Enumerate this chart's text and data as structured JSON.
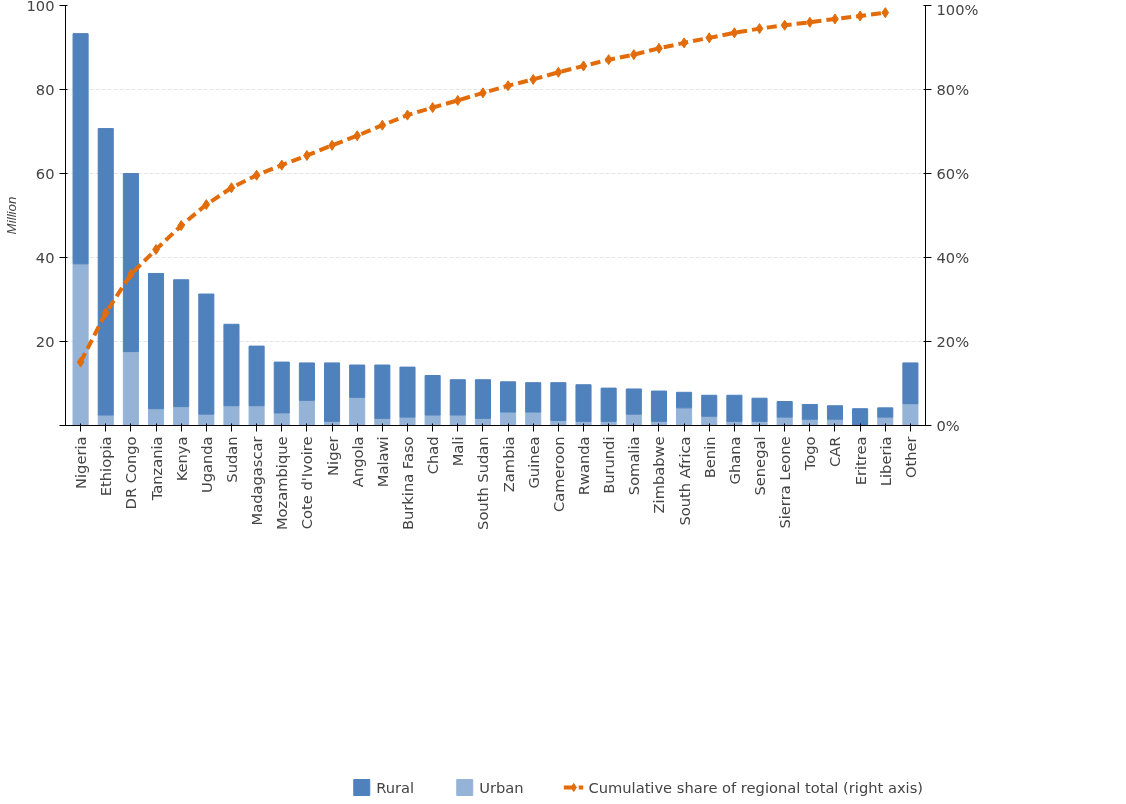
{
  "chart_data": {
    "type": "bar",
    "stacked": true,
    "ylabel": "Million",
    "categories": [
      "Nigeria",
      "Ethiopia",
      "DR Congo",
      "Tanzania",
      "Kenya",
      "Uganda",
      "Sudan",
      "Madagascar",
      "Mozambique",
      "Cote d'Ivoire",
      "Niger",
      "Angola",
      "Malawi",
      "Burkina Faso",
      "Chad",
      "Mali",
      "South Sudan",
      "Zambia",
      "Guinea",
      "Cameroon",
      "Rwanda",
      "Burundi",
      "Somalia",
      "Zimbabwe",
      "South Africa",
      "Benin",
      "Ghana",
      "Senegal",
      "Sierra Leone",
      "Togo",
      "CAR",
      "Eritrea",
      "Liberia",
      "Other"
    ],
    "series": [
      {
        "name": "Urban",
        "color": "#95b3d7",
        "values": [
          38.5,
          2.5,
          17.6,
          4,
          4.5,
          2.7,
          4.7,
          4.7,
          3,
          6,
          1,
          6.7,
          1.7,
          2,
          2.5,
          2.5,
          1.7,
          3.2,
          3.2,
          1.2,
          1,
          1,
          2.7,
          1,
          4.2,
          2.2,
          1,
          1,
          2,
          1.5,
          1.5,
          null,
          2,
          5.2
        ]
      },
      {
        "name": "Rural",
        "color": "#4f81bd",
        "values": [
          54.8,
          68.2,
          42.4,
          32.2,
          30.2,
          28.6,
          19.4,
          14.2,
          12.1,
          8.9,
          13.9,
          7.7,
          12.7,
          11.9,
          9.4,
          8.4,
          9.2,
          7.2,
          7.0,
          9.0,
          8.7,
          7.9,
          6.0,
          7.2,
          3.7,
          5.0,
          6.2,
          5.5,
          3.7,
          3.5,
          3.2,
          4.0,
          2.2,
          9.7
        ]
      },
      {
        "name": "Cumulative share of regional total (right axis)",
        "type": "line",
        "axis": "y2",
        "color": "#e36c0a",
        "marker": "diamond",
        "line_style": "dashed",
        "values": [
          15.1,
          26.8,
          36,
          41.9,
          47.6,
          52.6,
          56.6,
          59.6,
          62,
          64.3,
          66.7,
          69,
          71.5,
          73.9,
          75.7,
          77.4,
          79.2,
          80.9,
          82.4,
          84.1,
          85.6,
          87.1,
          88.3,
          89.8,
          91.1,
          92.3,
          93.5,
          94.5,
          95.3,
          96,
          96.8,
          97.5,
          98.3,
          null
        ]
      }
    ],
    "ylim": [
      0,
      100
    ],
    "yticks": [
      {
        "value": 0,
        "label": null
      },
      20,
      40,
      60,
      80,
      100
    ],
    "y2lim": [
      0,
      100
    ],
    "y2ticks": [
      {
        "value": 0,
        "label": "0%"
      },
      {
        "value": 20,
        "label": "20%"
      },
      {
        "value": 40,
        "label": "40%"
      },
      {
        "value": 60,
        "label": "60%"
      },
      {
        "value": 80,
        "label": "80%"
      },
      {
        "value": 100,
        "label": "100%"
      }
    ],
    "grid": "y",
    "legend": "bottom"
  }
}
